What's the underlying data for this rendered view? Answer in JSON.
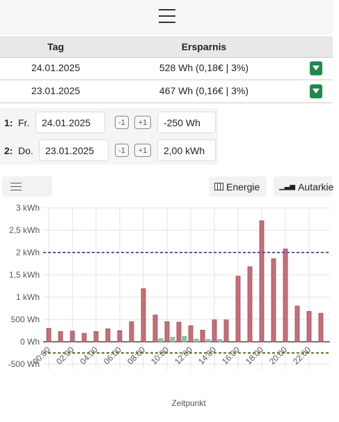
{
  "table": {
    "header": [
      "Tag",
      "Ersparnis"
    ],
    "rows": [
      [
        "24.01.2025",
        "528 Wh (0,18€ | 3%)"
      ],
      [
        "23.01.2025",
        "467 Wh (0,16€ | 3%)"
      ]
    ]
  },
  "controls": [
    {
      "index": "1:",
      "day": "Fr.",
      "date": "24.01.2025",
      "minus": "-1",
      "plus": "+1",
      "value": "-250 Wh"
    },
    {
      "index": "2:",
      "day": "Do.",
      "date": "23.01.2025",
      "minus": "-1",
      "plus": "+1",
      "value": "2,00 kWh"
    }
  ],
  "toolbar": [
    "Energie",
    "Autarkie"
  ],
  "chart_data": {
    "type": "bar",
    "x_label": "Zeitpunkt",
    "categories": [
      "00:00",
      null,
      "02:00",
      null,
      "04:00",
      null,
      "06:00",
      null,
      "08:00",
      null,
      "10:00",
      null,
      "12:00",
      null,
      "14:00",
      null,
      "16:00",
      null,
      "18:00",
      null,
      "20:00",
      null,
      "22:00",
      null
    ],
    "series": [
      {
        "color": "#c46f77",
        "values": [
          300,
          230,
          240,
          190,
          230,
          290,
          250,
          450,
          1190,
          600,
          450,
          440,
          360,
          260,
          490,
          490,
          1470,
          1680,
          2710,
          1860,
          2080,
          800,
          680,
          640
        ]
      },
      {
        "color": "#8fc1b2",
        "values": [
          0,
          0,
          0,
          0,
          0,
          0,
          0,
          0,
          0,
          70,
          100,
          120,
          60,
          50,
          50,
          0,
          0,
          0,
          0,
          0,
          0,
          0,
          0,
          0
        ]
      }
    ],
    "reference_lines": [
      {
        "value": 2000,
        "color": "#5a55b5"
      },
      {
        "value": -250,
        "color": "#6b6a34"
      }
    ],
    "ylim": [
      -500,
      3000
    ],
    "yticks": [
      {
        "value": -500,
        "label": "-500 Wh"
      },
      {
        "value": 0,
        "label": "0 Wh"
      },
      {
        "value": 500,
        "label": "500 Wh"
      },
      {
        "value": 1000,
        "label": "1 kWh"
      },
      {
        "value": 1500,
        "label": "1,5 kWh"
      },
      {
        "value": 2000,
        "label": "2 kWh"
      },
      {
        "value": 2500,
        "label": "2,5 kWh"
      },
      {
        "value": 3000,
        "label": "3 kWh"
      }
    ],
    "grid": true
  }
}
